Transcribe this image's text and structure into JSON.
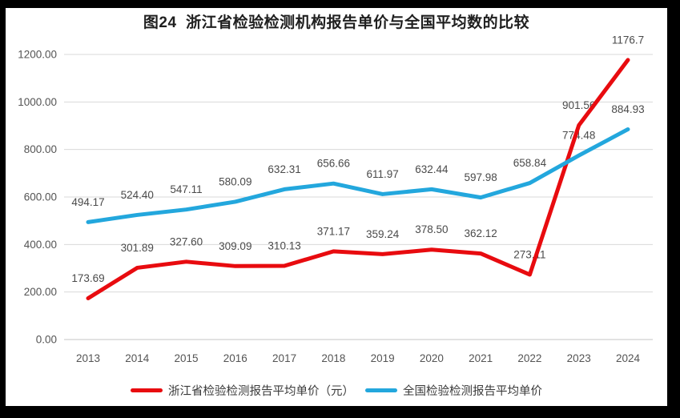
{
  "chart_data": {
    "type": "line",
    "title": "图24  浙江省检验检测机构报告单价与全国平均数的比较",
    "categories": [
      "2013",
      "2014",
      "2015",
      "2016",
      "2017",
      "2018",
      "2019",
      "2020",
      "2021",
      "2022",
      "2023",
      "2024"
    ],
    "y_ticks": [
      "0.00",
      "200.00",
      "400.00",
      "600.00",
      "800.00",
      "1000.00",
      "1200.00"
    ],
    "ylim": [
      0,
      1200
    ],
    "xlabel": "",
    "ylabel": "",
    "grid": "horizontal",
    "legend_position": "bottom",
    "series": [
      {
        "name": "浙江省检验检测报告平均单价（元）",
        "color": "#e80b0f",
        "values": [
          173.69,
          301.89,
          327.6,
          309.09,
          310.13,
          371.17,
          359.24,
          378.5,
          362.12,
          273.11,
          901.56,
          1176.7
        ],
        "labels": [
          "173.69",
          "301.89",
          "327.60",
          "309.09",
          "310.13",
          "371.17",
          "359.24",
          "378.50",
          "362.12",
          "273.11",
          "901.56",
          "1176.7"
        ]
      },
      {
        "name": "全国检验检测报告平均单价",
        "color": "#23a7dd",
        "values": [
          494.17,
          524.4,
          547.11,
          580.09,
          632.31,
          656.66,
          611.97,
          632.44,
          597.98,
          658.84,
          774.48,
          884.93
        ],
        "labels": [
          "494.17",
          "524.40",
          "547.11",
          "580.09",
          "632.31",
          "656.66",
          "611.97",
          "632.44",
          "597.98",
          "658.84",
          "774.48",
          "884.93"
        ]
      }
    ],
    "colors": {
      "grid": "#d9d9d9",
      "axis": "#c6c6c6",
      "text": "#545454",
      "frame": "#000000",
      "background": "#ffffff"
    }
  }
}
